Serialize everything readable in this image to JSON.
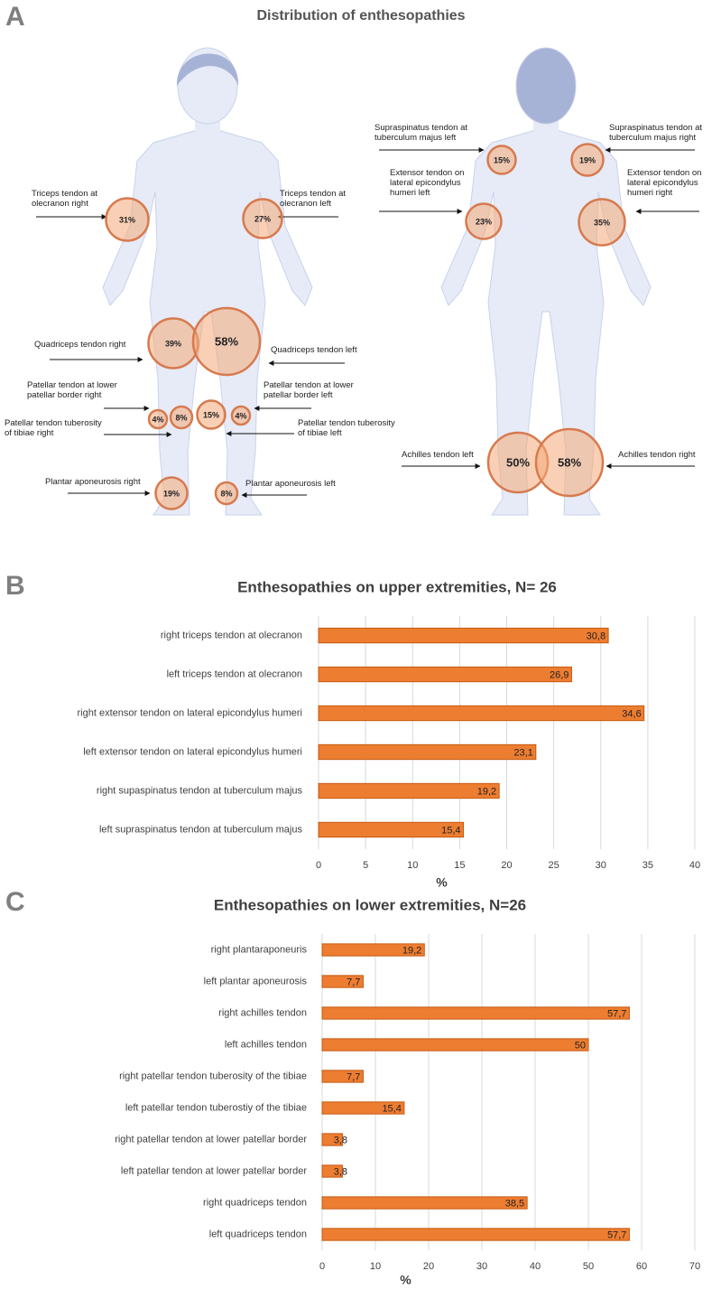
{
  "panels": [
    "A",
    "B",
    "C"
  ],
  "diagram": {
    "title": "Distribution of enthesopathies",
    "figures": [
      {
        "markers": [
          {
            "label": "Triceps tendon at\nolecranon right",
            "value": 31,
            "value_label": "31%"
          },
          {
            "label": "Triceps tendon at\nolecranon left",
            "value": 27,
            "value_label": "27%"
          },
          {
            "label": "Quadriceps tendon right",
            "value": 39,
            "value_label": "39%"
          },
          {
            "label": "Quadriceps tendon left",
            "value": 58,
            "value_label": "58%"
          },
          {
            "label": "Patellar tendon at lower\npatellar border right",
            "value": 4,
            "value_label": "4%"
          },
          {
            "label": "Patellar tendon tuberosity\nof tibiae right",
            "value": 8,
            "value_label": "8%"
          },
          {
            "label": "Patellar tendon tuberosity\nof  tibiae left",
            "value": 15,
            "value_label": "15%"
          },
          {
            "label": "Patellar tendon at lower\npatellar border left",
            "value": 4,
            "value_label": "4%"
          },
          {
            "label": "Plantar aponeurosis right",
            "value": 19,
            "value_label": "19%"
          },
          {
            "label": "Plantar aponeurosis left",
            "value": 8,
            "value_label": "8%"
          }
        ]
      },
      {
        "markers": [
          {
            "label": "Supraspinatus tendon at\ntuberculum majus left",
            "value": 15,
            "value_label": "15%"
          },
          {
            "label": "Supraspinatus tendon at\ntuberculum majus right",
            "value": 19,
            "value_label": "19%"
          },
          {
            "label": "Extensor tendon on\nlateral epicondylus\nhumeri left",
            "value": 23,
            "value_label": "23%"
          },
          {
            "label": "Extensor tendon on\nlateral epicondylus\nhumeri right",
            "value": 35,
            "value_label": "35%"
          },
          {
            "label": "Achilles tendon left",
            "value": 50,
            "value_label": "50%"
          },
          {
            "label": "Achilles tendon right",
            "value": 58,
            "value_label": "58%"
          }
        ]
      }
    ]
  },
  "chart_data": [
    {
      "type": "bar",
      "orientation": "horizontal",
      "title": "Enthesopathies on upper extremities, N= 26",
      "categories": [
        "right triceps tendon at olecranon",
        "left triceps tendon at olecranon",
        "right extensor tendon on lateral epicondylus humeri",
        "left extensor tendon on lateral epicondylus humeri",
        "right supaspinatus tendon at tuberculum majus",
        "left supraspinatus tendon at tuberculum majus"
      ],
      "values": [
        30.8,
        26.9,
        34.6,
        23.1,
        19.2,
        15.4
      ],
      "value_labels": [
        "30,8",
        "26,9",
        "34,6",
        "23,1",
        "19,2",
        "15,4"
      ],
      "color": "#ed7d31",
      "xlabel": "%",
      "xlim": [
        0,
        40
      ],
      "xticks": [
        0,
        5,
        10,
        15,
        20,
        25,
        30,
        35,
        40
      ],
      "grid": true
    },
    {
      "type": "bar",
      "orientation": "horizontal",
      "title": "Enthesopathies on lower extremities, N=26",
      "categories": [
        "right plantaraponeuris",
        "left plantar aponeurosis",
        "right achilles tendon",
        "left achilles tendon",
        "right patellar tendon tuberosity of the tibiae",
        "left patellar tendon tuberostiy of the tibiae",
        "right patellar tendon at lower patellar border",
        "left patellar tendon at lower patellar border",
        "right quadriceps tendon",
        "left quadriceps tendon"
      ],
      "values": [
        19.2,
        7.7,
        57.7,
        50,
        7.7,
        15.4,
        3.8,
        3.8,
        38.5,
        57.7
      ],
      "value_labels": [
        "19,2",
        "7,7",
        "57,7",
        "50",
        "7,7",
        "15,4",
        "3,8",
        "3,8",
        "38,5",
        "57,7"
      ],
      "color": "#ed7d31",
      "xlabel": "%",
      "xlim": [
        0,
        70
      ],
      "xticks": [
        0,
        10,
        20,
        30,
        40,
        50,
        60,
        70
      ],
      "grid": true
    }
  ]
}
